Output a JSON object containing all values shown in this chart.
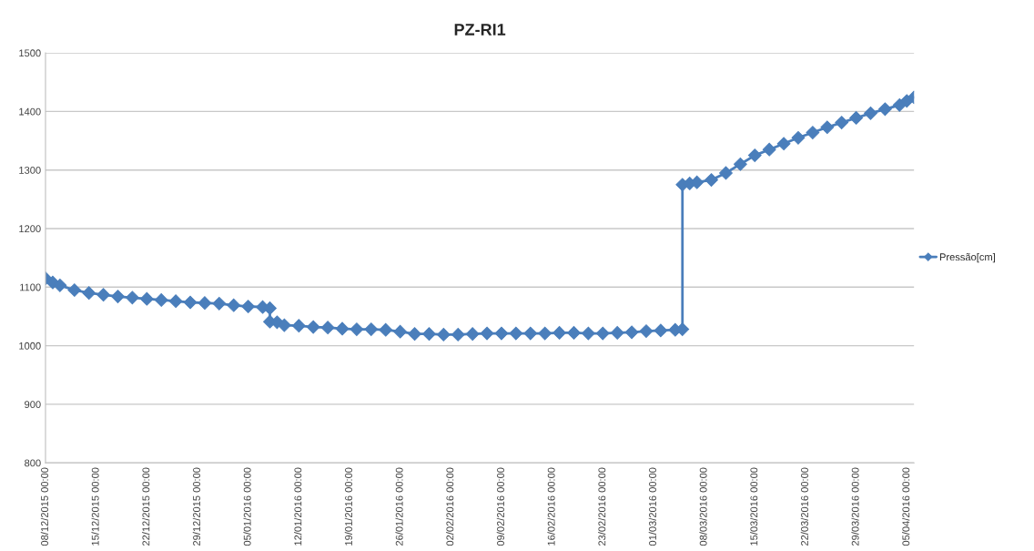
{
  "chart_data": {
    "type": "line",
    "title": "PZ-RI1",
    "x": [
      "2015-12-08",
      "2015-12-09",
      "2015-12-10",
      "2015-12-12",
      "2015-12-14",
      "2015-12-16",
      "2015-12-18",
      "2015-12-20",
      "2015-12-22",
      "2015-12-24",
      "2015-12-26",
      "2015-12-28",
      "2015-12-30",
      "2016-01-01",
      "2016-01-03",
      "2016-01-05",
      "2016-01-07",
      "2016-01-08",
      "2016-01-08",
      "2016-01-09",
      "2016-01-10",
      "2016-01-12",
      "2016-01-14",
      "2016-01-16",
      "2016-01-18",
      "2016-01-20",
      "2016-01-22",
      "2016-01-24",
      "2016-01-26",
      "2016-01-28",
      "2016-01-30",
      "2016-02-01",
      "2016-02-03",
      "2016-02-05",
      "2016-02-07",
      "2016-02-09",
      "2016-02-11",
      "2016-02-13",
      "2016-02-15",
      "2016-02-17",
      "2016-02-19",
      "2016-02-21",
      "2016-02-23",
      "2016-02-25",
      "2016-02-27",
      "2016-02-29",
      "2016-03-02",
      "2016-03-04",
      "2016-03-05",
      "2016-03-05",
      "2016-03-06",
      "2016-03-07",
      "2016-03-09",
      "2016-03-11",
      "2016-03-13",
      "2016-03-15",
      "2016-03-17",
      "2016-03-19",
      "2016-03-21",
      "2016-03-23",
      "2016-03-25",
      "2016-03-27",
      "2016-03-29",
      "2016-03-31",
      "2016-04-02",
      "2016-04-04",
      "2016-04-05",
      "2016-04-06"
    ],
    "series": [
      {
        "name": "Pressão[cm]",
        "color": "#4a7ebb",
        "values": [
          1115,
          1108,
          1103,
          1095,
          1090,
          1087,
          1084,
          1082,
          1080,
          1078,
          1076,
          1074,
          1073,
          1072,
          1069,
          1067,
          1066,
          1064,
          1041,
          1040,
          1035,
          1034,
          1032,
          1031,
          1029,
          1028,
          1028,
          1027,
          1024,
          1020,
          1020,
          1019,
          1019,
          1020,
          1021,
          1021,
          1021,
          1021,
          1021,
          1022,
          1022,
          1021,
          1021,
          1022,
          1023,
          1025,
          1026,
          1027,
          1028,
          1275,
          1277,
          1279,
          1283,
          1295,
          1310,
          1325,
          1335,
          1345,
          1355,
          1364,
          1373,
          1381,
          1389,
          1397,
          1404,
          1411,
          1418,
          1424
        ]
      }
    ],
    "xlim": [
      "2015-12-08",
      "2016-04-06"
    ],
    "xticks": [
      {
        "value": "2015-12-08",
        "label": "08/12/2015 00:00"
      },
      {
        "value": "2015-12-15",
        "label": "15/12/2015 00:00"
      },
      {
        "value": "2015-12-22",
        "label": "22/12/2015 00:00"
      },
      {
        "value": "2015-12-29",
        "label": "29/12/2015 00:00"
      },
      {
        "value": "2016-01-05",
        "label": "05/01/2016 00:00"
      },
      {
        "value": "2016-01-12",
        "label": "12/01/2016 00:00"
      },
      {
        "value": "2016-01-19",
        "label": "19/01/2016 00:00"
      },
      {
        "value": "2016-01-26",
        "label": "26/01/2016 00:00"
      },
      {
        "value": "2016-02-02",
        "label": "02/02/2016 00:00"
      },
      {
        "value": "2016-02-09",
        "label": "09/02/2016 00:00"
      },
      {
        "value": "2016-02-16",
        "label": "16/02/2016 00:00"
      },
      {
        "value": "2016-02-23",
        "label": "23/02/2016 00:00"
      },
      {
        "value": "2016-03-01",
        "label": "01/03/2016 00:00"
      },
      {
        "value": "2016-03-08",
        "label": "08/03/2016 00:00"
      },
      {
        "value": "2016-03-15",
        "label": "15/03/2016 00:00"
      },
      {
        "value": "2016-03-22",
        "label": "22/03/2016 00:00"
      },
      {
        "value": "2016-03-29",
        "label": "29/03/2016 00:00"
      },
      {
        "value": "2016-04-05",
        "label": "05/04/2016 00:00"
      }
    ],
    "ylim": [
      800,
      1500
    ],
    "yticks": [
      800,
      900,
      1000,
      1100,
      1200,
      1300,
      1400,
      1500
    ],
    "grid": "y",
    "legend": "right",
    "marker": "diamond",
    "line_style": "solid"
  }
}
